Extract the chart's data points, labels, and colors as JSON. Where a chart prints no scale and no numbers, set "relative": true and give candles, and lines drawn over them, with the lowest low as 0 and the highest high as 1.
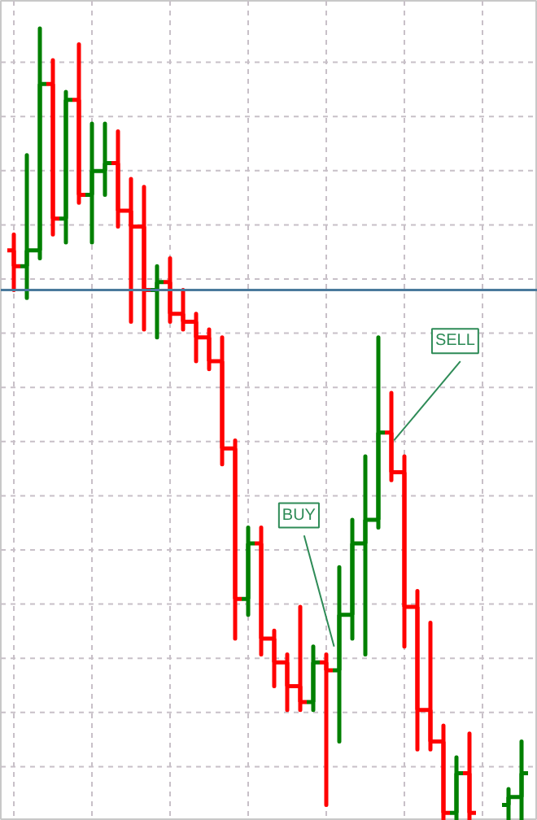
{
  "chart_data": {
    "type": "candlestick",
    "relative": true,
    "grid": true,
    "categories": [
      null,
      null,
      null,
      null,
      null,
      null,
      null,
      null,
      null,
      null,
      null,
      null,
      null,
      null,
      null,
      null,
      null,
      null,
      null,
      null,
      null,
      null,
      null,
      null,
      null,
      null,
      null,
      null,
      null,
      null,
      null,
      null,
      null,
      null,
      null,
      null,
      null,
      null,
      null,
      null
    ],
    "ohlc": [
      [
        0.72,
        0.74,
        0.67,
        0.7
      ],
      [
        0.7,
        0.84,
        0.66,
        0.72
      ],
      [
        0.72,
        1.0,
        0.71,
        0.93
      ],
      [
        0.93,
        0.96,
        0.74,
        0.76
      ],
      [
        0.76,
        0.92,
        0.73,
        0.91
      ],
      [
        0.91,
        0.98,
        0.78,
        0.79
      ],
      [
        0.79,
        0.88,
        0.73,
        0.82
      ],
      [
        0.82,
        0.88,
        0.79,
        0.83
      ],
      [
        0.83,
        0.87,
        0.75,
        0.77
      ],
      [
        0.77,
        0.81,
        0.63,
        0.75
      ],
      [
        0.75,
        0.8,
        0.62,
        0.67
      ],
      [
        0.67,
        0.7,
        0.61,
        0.68
      ],
      [
        0.68,
        0.71,
        0.63,
        0.64
      ],
      [
        0.64,
        0.67,
        0.62,
        0.63
      ],
      [
        0.63,
        0.64,
        0.58,
        0.61
      ],
      [
        0.61,
        0.62,
        0.57,
        0.58
      ],
      [
        0.58,
        0.61,
        0.45,
        0.47
      ],
      [
        0.47,
        0.48,
        0.23,
        0.28
      ],
      [
        0.28,
        0.37,
        0.26,
        0.35
      ],
      [
        0.35,
        0.37,
        0.21,
        0.23
      ],
      [
        0.23,
        0.24,
        0.17,
        0.2
      ],
      [
        0.2,
        0.21,
        0.14,
        0.17
      ],
      [
        0.17,
        0.27,
        0.14,
        0.15
      ],
      [
        0.15,
        0.22,
        0.14,
        0.2
      ],
      [
        0.2,
        0.21,
        0.02,
        0.19
      ],
      [
        0.19,
        0.32,
        0.1,
        0.26
      ],
      [
        0.26,
        0.38,
        0.23,
        0.35
      ],
      [
        0.35,
        0.46,
        0.21,
        0.38
      ],
      [
        0.38,
        0.61,
        0.37,
        0.49
      ],
      [
        0.49,
        0.54,
        0.43,
        0.44
      ],
      [
        0.44,
        0.46,
        0.22,
        0.27
      ],
      [
        0.27,
        0.29,
        0.09,
        0.14
      ],
      [
        0.14,
        0.25,
        0.09,
        0.1
      ],
      [
        0.1,
        0.12,
        0,
        0.01
      ],
      [
        0.01,
        0.08,
        0,
        0.06
      ],
      [
        0.06,
        0.11,
        0,
        0.01
      ],
      null,
      null,
      [
        0.02,
        0.04,
        0,
        0.03
      ],
      [
        0.03,
        0.1,
        0,
        0.06
      ]
    ],
    "colors": [
      "#ff0000",
      "#008000",
      "#008000",
      "#ff0000",
      "#008000",
      "#ff0000",
      "#008000",
      "#008000",
      "#ff0000",
      "#ff0000",
      "#ff0000",
      "#008000",
      "#ff0000",
      "#ff0000",
      "#ff0000",
      "#ff0000",
      "#ff0000",
      "#ff0000",
      "#008000",
      "#ff0000",
      "#ff0000",
      "#ff0000",
      "#ff0000",
      "#008000",
      "#ff0000",
      "#008000",
      "#008000",
      "#008000",
      "#008000",
      "#ff0000",
      "#ff0000",
      "#ff0000",
      "#ff0000",
      "#ff0000",
      "#008000",
      "#ff0000",
      null,
      null,
      "#008000",
      "#008000"
    ],
    "ref_lines": [
      {
        "axis": "y",
        "value": 0.67,
        "color": "#4a7a9c"
      }
    ],
    "annotations": [
      "BUY",
      "SELL"
    ]
  }
}
